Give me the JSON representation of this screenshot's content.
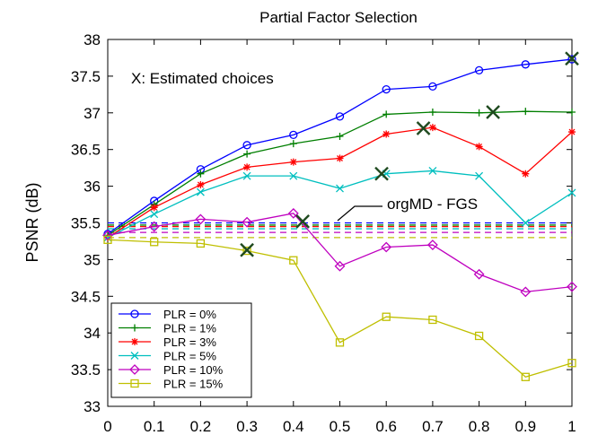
{
  "chart_data": {
    "type": "line",
    "title": "Partial Factor Selection",
    "xlabel": "",
    "ylabel": "PSNR (dB)",
    "xlim": [
      0,
      1
    ],
    "ylim": [
      33,
      38
    ],
    "xticks": [
      "0",
      "0.1",
      "0.2",
      "0.3",
      "0.4",
      "0.5",
      "0.6",
      "0.7",
      "0.8",
      "0.9",
      "1"
    ],
    "yticks": [
      "33",
      "33.5",
      "34",
      "34.5",
      "35",
      "35.5",
      "36",
      "36.5",
      "37",
      "37.5",
      "38"
    ],
    "grid": false,
    "legend_position": "bottom-left",
    "x": [
      0,
      0.1,
      0.2,
      0.3,
      0.4,
      0.5,
      0.6,
      0.7,
      0.8,
      0.9,
      1
    ],
    "series": [
      {
        "name": "PLR = 0%",
        "color": "#0000ff",
        "marker": "circle",
        "values": [
          35.35,
          35.8,
          36.23,
          36.56,
          36.7,
          36.95,
          37.32,
          37.36,
          37.58,
          37.66,
          37.73
        ]
      },
      {
        "name": "PLR = 1%",
        "color": "#007f00",
        "marker": "plus",
        "values": [
          35.33,
          35.75,
          36.17,
          36.44,
          36.58,
          36.68,
          36.98,
          37.01,
          37.0,
          37.02,
          37.01
        ]
      },
      {
        "name": "PLR = 3%",
        "color": "#ff0000",
        "marker": "star",
        "values": [
          35.3,
          35.71,
          36.02,
          36.26,
          36.33,
          36.38,
          36.71,
          36.8,
          36.54,
          36.17,
          36.74
        ]
      },
      {
        "name": "PLR = 5%",
        "color": "#00bfbf",
        "marker": "x",
        "values": [
          35.3,
          35.62,
          35.92,
          36.14,
          36.14,
          35.97,
          36.17,
          36.21,
          36.14,
          35.5,
          35.91
        ]
      },
      {
        "name": "PLR = 10%",
        "color": "#bf00bf",
        "marker": "diamond",
        "values": [
          35.33,
          35.45,
          35.55,
          35.51,
          35.63,
          34.91,
          35.17,
          35.2,
          34.8,
          34.56,
          34.63
        ]
      },
      {
        "name": "PLR = 15%",
        "color": "#bfbf00",
        "marker": "square",
        "values": [
          35.27,
          35.24,
          35.22,
          35.12,
          34.99,
          33.87,
          34.22,
          34.18,
          33.96,
          33.4,
          33.59
        ]
      }
    ],
    "reference_lines": [
      {
        "label": "orgMD - FGS",
        "color": "#0000ff",
        "y": 35.5
      },
      {
        "color": "#007f00",
        "y": 35.47
      },
      {
        "color": "#ff0000",
        "y": 35.45
      },
      {
        "color": "#00bfbf",
        "y": 35.42
      },
      {
        "color": "#bf00bf",
        "y": 35.37
      },
      {
        "color": "#bfbf00",
        "y": 35.3
      }
    ],
    "estimated_choices": {
      "label": "X: Estimated choices",
      "points": [
        {
          "x": 1.0,
          "y": 37.74
        },
        {
          "x": 0.83,
          "y": 37.01
        },
        {
          "x": 0.68,
          "y": 36.79
        },
        {
          "x": 0.59,
          "y": 36.17
        },
        {
          "x": 0.42,
          "y": 35.52
        },
        {
          "x": 0.3,
          "y": 35.13
        }
      ]
    }
  }
}
